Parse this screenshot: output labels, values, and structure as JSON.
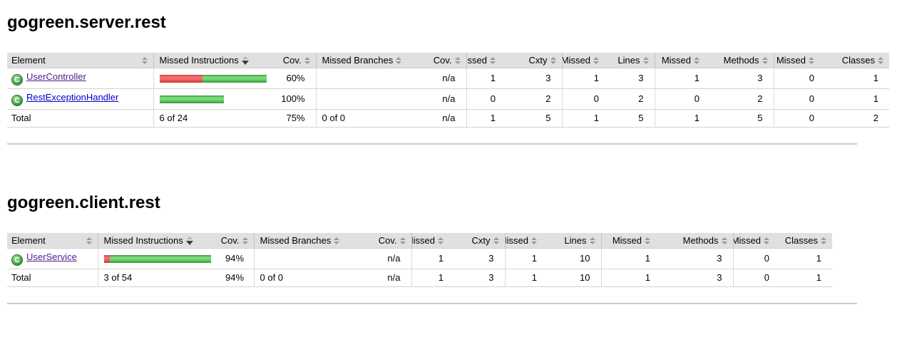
{
  "colors": {
    "header_bg": "#e0e0e0",
    "bar_missed_red": "#e04848",
    "bar_covered_green": "#4fc24f",
    "link": "#0000cc",
    "link_visited": "#551a8b"
  },
  "sections": [
    {
      "title": "gogreen.server.rest",
      "columns": [
        {
          "label": "Element",
          "sort": "both"
        },
        {
          "label": "Missed Instructions",
          "sort": "down"
        },
        {
          "label": "Cov.",
          "sort": "both"
        },
        {
          "label": "Missed Branches",
          "sort": "both"
        },
        {
          "label": "Cov.",
          "sort": "both"
        },
        {
          "label": "Missed",
          "sort": "both"
        },
        {
          "label": "Cxty",
          "sort": "both"
        },
        {
          "label": "Missed",
          "sort": "both"
        },
        {
          "label": "Lines",
          "sort": "both"
        },
        {
          "label": "Missed",
          "sort": "both"
        },
        {
          "label": "Methods",
          "sort": "both"
        },
        {
          "label": "Missed",
          "sort": "both"
        },
        {
          "label": "Classes",
          "sort": "both"
        }
      ],
      "rows": [
        {
          "element": "UserController",
          "visited": "true",
          "bar": {
            "missed_w": 60,
            "covered_w": 90
          },
          "instruction_cov": "60%",
          "missed_branches": "",
          "branch_cov": "n/a",
          "missed_cxty": "1",
          "cxty": "3",
          "missed_lines": "1",
          "lines": "3",
          "missed_methods": "1",
          "methods": "3",
          "missed_classes": "0",
          "classes": "1"
        },
        {
          "element": "RestExceptionHandler",
          "visited": "false",
          "bar": {
            "missed_w": 0,
            "covered_w": 90
          },
          "instruction_cov": "100%",
          "missed_branches": "",
          "branch_cov": "n/a",
          "missed_cxty": "0",
          "cxty": "2",
          "missed_lines": "0",
          "lines": "2",
          "missed_methods": "0",
          "methods": "2",
          "missed_classes": "0",
          "classes": "1"
        }
      ],
      "total": {
        "label": "Total",
        "missed_instructions": "6 of 24",
        "instruction_cov": "75%",
        "missed_branches": "0 of 0",
        "branch_cov": "n/a",
        "missed_cxty": "1",
        "cxty": "5",
        "missed_lines": "1",
        "lines": "5",
        "missed_methods": "1",
        "methods": "5",
        "missed_classes": "0",
        "classes": "2"
      }
    },
    {
      "title": "gogreen.client.rest",
      "columns": [
        {
          "label": "Element",
          "sort": "both"
        },
        {
          "label": "Missed Instructions",
          "sort": "down"
        },
        {
          "label": "Cov.",
          "sort": "both"
        },
        {
          "label": "Missed Branches",
          "sort": "both"
        },
        {
          "label": "Cov.",
          "sort": "both"
        },
        {
          "label": "Missed",
          "sort": "both"
        },
        {
          "label": "Cxty",
          "sort": "both"
        },
        {
          "label": "Missed",
          "sort": "both"
        },
        {
          "label": "Lines",
          "sort": "both"
        },
        {
          "label": "Missed",
          "sort": "both"
        },
        {
          "label": "Methods",
          "sort": "both"
        },
        {
          "label": "Missed",
          "sort": "both"
        },
        {
          "label": "Classes",
          "sort": "both"
        }
      ],
      "rows": [
        {
          "element": "UserService",
          "visited": "true",
          "bar": {
            "missed_w": 8,
            "covered_w": 142
          },
          "instruction_cov": "94%",
          "missed_branches": "",
          "branch_cov": "n/a",
          "missed_cxty": "1",
          "cxty": "3",
          "missed_lines": "1",
          "lines": "10",
          "missed_methods": "1",
          "methods": "3",
          "missed_classes": "0",
          "classes": "1"
        }
      ],
      "total": {
        "label": "Total",
        "missed_instructions": "3 of 54",
        "instruction_cov": "94%",
        "missed_branches": "0 of 0",
        "branch_cov": "n/a",
        "missed_cxty": "1",
        "cxty": "3",
        "missed_lines": "1",
        "lines": "10",
        "missed_methods": "1",
        "methods": "3",
        "missed_classes": "0",
        "classes": "1"
      }
    }
  ]
}
